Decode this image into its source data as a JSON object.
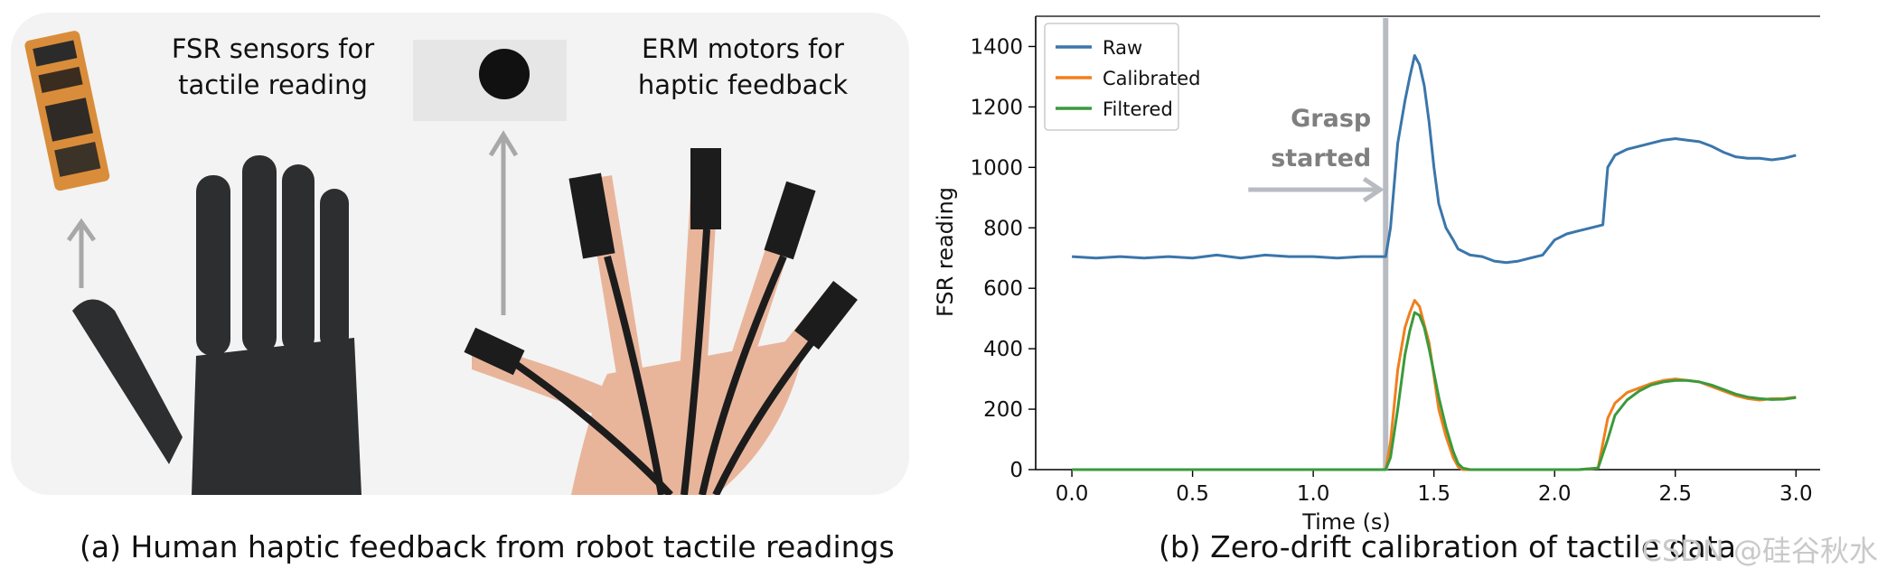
{
  "left": {
    "fsr_label": [
      "FSR sensors for",
      "tactile reading"
    ],
    "erm_label": [
      "ERM motors for",
      "haptic feedback"
    ],
    "caption": "(a) Human haptic feedback from robot tactile readings"
  },
  "right": {
    "caption": "(b) Zero-drift calibration of tactile data",
    "annotation": [
      "Grasp",
      "started"
    ]
  },
  "watermark": "CSDN @硅谷秋水",
  "colors": {
    "raw": "#3a76aa",
    "calibrated": "#f07f1e",
    "filtered": "#3b9a3b",
    "marker": "#b8bcc2",
    "annotation": "#7f7f7f"
  },
  "chart_data": {
    "type": "line",
    "xlabel": "Time (s)",
    "ylabel": "FSR reading",
    "xlim": [
      -0.15,
      3.1
    ],
    "ylim": [
      0,
      1500
    ],
    "xticks": [
      0.0,
      0.5,
      1.0,
      1.5,
      2.0,
      2.5,
      3.0
    ],
    "xtick_labels": [
      "0.0",
      "0.5",
      "1.0",
      "1.5",
      "2.0",
      "2.5",
      "3.0"
    ],
    "yticks": [
      0,
      200,
      400,
      600,
      800,
      1000,
      1200,
      1400
    ],
    "ytick_labels": [
      "0",
      "200",
      "400",
      "600",
      "800",
      "1000",
      "1200",
      "1400"
    ],
    "legend_position": "top-left",
    "grasp_start_x": 1.3,
    "series": [
      {
        "name": "Raw",
        "x": [
          0.0,
          0.1,
          0.2,
          0.3,
          0.4,
          0.5,
          0.6,
          0.7,
          0.8,
          0.9,
          1.0,
          1.1,
          1.2,
          1.3,
          1.32,
          1.35,
          1.38,
          1.4,
          1.42,
          1.44,
          1.46,
          1.48,
          1.5,
          1.52,
          1.55,
          1.58,
          1.6,
          1.65,
          1.7,
          1.75,
          1.8,
          1.85,
          1.9,
          1.95,
          2.0,
          2.05,
          2.1,
          2.15,
          2.2,
          2.22,
          2.25,
          2.3,
          2.35,
          2.4,
          2.45,
          2.5,
          2.55,
          2.6,
          2.65,
          2.7,
          2.75,
          2.8,
          2.85,
          2.9,
          2.95,
          3.0
        ],
        "values": [
          705,
          700,
          705,
          700,
          705,
          700,
          710,
          700,
          710,
          705,
          705,
          700,
          705,
          705,
          800,
          1080,
          1220,
          1300,
          1370,
          1340,
          1270,
          1150,
          1000,
          880,
          800,
          760,
          730,
          710,
          705,
          690,
          685,
          690,
          700,
          710,
          760,
          780,
          790,
          800,
          810,
          1000,
          1040,
          1060,
          1070,
          1080,
          1090,
          1095,
          1090,
          1085,
          1070,
          1050,
          1035,
          1030,
          1030,
          1025,
          1030,
          1040
        ]
      },
      {
        "name": "Calibrated",
        "x": [
          0.0,
          0.5,
          1.0,
          1.3,
          1.32,
          1.35,
          1.38,
          1.4,
          1.42,
          1.44,
          1.46,
          1.48,
          1.5,
          1.52,
          1.55,
          1.58,
          1.6,
          1.62,
          1.65,
          1.7,
          1.8,
          1.9,
          2.0,
          2.1,
          2.18,
          2.22,
          2.25,
          2.3,
          2.35,
          2.4,
          2.45,
          2.5,
          2.55,
          2.6,
          2.65,
          2.7,
          2.75,
          2.8,
          2.85,
          2.9,
          2.95,
          3.0
        ],
        "values": [
          0,
          0,
          0,
          0,
          90,
          330,
          470,
          520,
          560,
          540,
          480,
          420,
          310,
          200,
          110,
          40,
          10,
          0,
          0,
          0,
          0,
          0,
          0,
          0,
          5,
          170,
          220,
          255,
          270,
          285,
          295,
          300,
          295,
          290,
          275,
          260,
          245,
          235,
          230,
          235,
          235,
          240
        ]
      },
      {
        "name": "Filtered",
        "x": [
          0.0,
          0.5,
          1.0,
          1.3,
          1.32,
          1.35,
          1.38,
          1.4,
          1.42,
          1.44,
          1.46,
          1.48,
          1.5,
          1.52,
          1.55,
          1.58,
          1.6,
          1.62,
          1.65,
          1.7,
          1.8,
          1.9,
          2.0,
          2.1,
          2.18,
          2.22,
          2.25,
          2.3,
          2.35,
          2.4,
          2.45,
          2.5,
          2.55,
          2.6,
          2.65,
          2.7,
          2.75,
          2.8,
          2.85,
          2.9,
          2.95,
          3.0
        ],
        "values": [
          0,
          0,
          0,
          0,
          40,
          200,
          380,
          460,
          520,
          510,
          470,
          400,
          320,
          240,
          140,
          60,
          20,
          5,
          0,
          0,
          0,
          0,
          0,
          0,
          5,
          100,
          180,
          230,
          260,
          280,
          290,
          295,
          295,
          290,
          280,
          265,
          250,
          240,
          235,
          232,
          233,
          238
        ]
      }
    ]
  }
}
